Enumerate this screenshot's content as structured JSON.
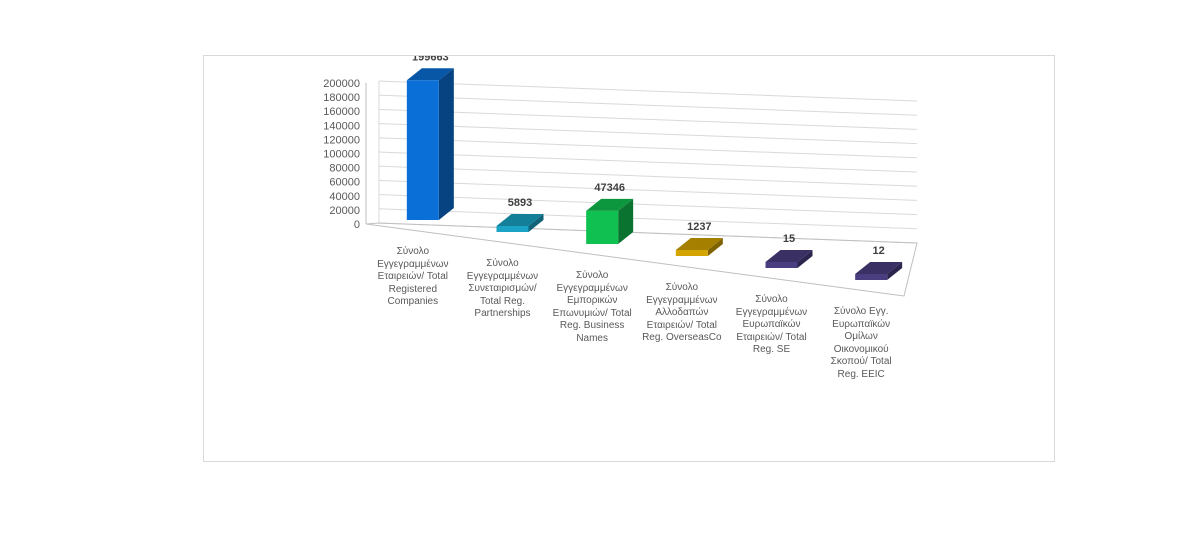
{
  "chart_data": {
    "type": "bar",
    "title": "",
    "xlabel": "",
    "ylabel": "",
    "ylim": [
      0,
      200000
    ],
    "y_ticks": [
      "0",
      "20000",
      "40000",
      "60000",
      "80000",
      "100000",
      "120000",
      "140000",
      "160000",
      "180000",
      "200000"
    ],
    "grid": true,
    "categories": [
      "Σύνολο\nΕγγεγραμμένων\nΕταιρειών/ Total\nRegistered\nCompanies",
      "Σύνολο\nΕγγεγραμμένων\nΣυνεταιρισμών/\nTotal Reg.\nPartnerships",
      "Σύνολο\nΕγγεγραμμένων\nΕμπορικών\nΕπωνυμιών/ Total\nReg. Business\nNames",
      "Σύνολο\nΕγγεγραμμένων\nΑλλοδαπών\nΕταιρειών/ Total\nReg. OverseasCo",
      "Σύνολο\nΕγγεγραμμένων\nΕυρωπαϊκών\nΕταιρειών/ Total\nReg. SE",
      "Σύνολο Εγγ.\nΕυρωπαϊκών\nΟμίλων\nΟικονομικού\nΣκοπού/ Total\nReg. EEIC"
    ],
    "values": [
      199663,
      5893,
      47346,
      1237,
      15,
      12
    ],
    "data_labels": [
      "199663",
      "5893",
      "47346",
      "1237",
      "15",
      "12"
    ],
    "colors": [
      "#0a6fd6",
      "#1aa3c4",
      "#10c050",
      "#d4a400",
      "#4a3d80",
      "#4a3d80"
    ]
  }
}
